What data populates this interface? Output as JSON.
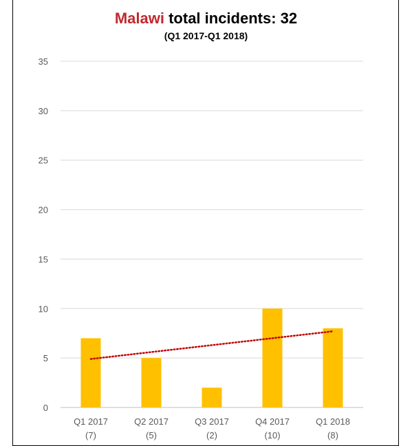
{
  "header": {
    "country": "Malawi",
    "title_rest": " total incidents: 32",
    "subtitle": "(Q1 2017-Q1 2018)"
  },
  "chart_data": {
    "type": "bar",
    "title": "Malawi total incidents: 32",
    "subtitle": "(Q1 2017-Q1 2018)",
    "categories": [
      "Q1 2017",
      "Q2 2017",
      "Q3 2017",
      "Q4 2017",
      "Q1 2018"
    ],
    "category_counts": [
      "(7)",
      "(5)",
      "(2)",
      "(10)",
      "(8)"
    ],
    "values": [
      7,
      5,
      2,
      10,
      8
    ],
    "ylim": [
      0,
      35
    ],
    "yticks": [
      0,
      5,
      10,
      15,
      20,
      25,
      30,
      35
    ],
    "grid": true,
    "bar_color": "#ffc000",
    "trendline": {
      "type": "linear",
      "style": "dotted",
      "color": "#c00000",
      "start": 4.9,
      "end": 7.7
    }
  }
}
